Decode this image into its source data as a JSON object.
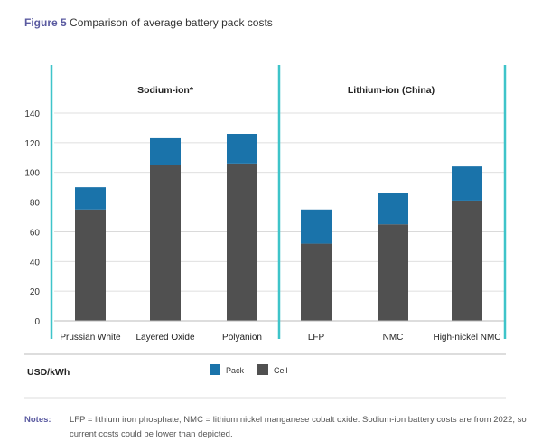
{
  "figure": {
    "label": "Figure 5",
    "title": "Comparison of average battery pack costs"
  },
  "chart_data": {
    "type": "bar",
    "stacked": true,
    "panels": [
      {
        "title": "Sodium-ion*",
        "categories": [
          "Prussian White",
          "Layered Oxide",
          "Polyanion"
        ]
      },
      {
        "title": "Lithium-ion (China)",
        "categories": [
          "LFP",
          "NMC",
          "High-nickel NMC"
        ]
      }
    ],
    "categories": [
      "Prussian White",
      "Layered Oxide",
      "Polyanion",
      "LFP",
      "NMC",
      "High-nickel NMC"
    ],
    "series": [
      {
        "name": "Cell",
        "color": "#505050",
        "values": [
          75,
          105,
          106,
          52,
          65,
          81
        ]
      },
      {
        "name": "Pack",
        "color": "#1a73aa",
        "values": [
          15,
          18,
          20,
          23,
          21,
          23
        ]
      }
    ],
    "totals": [
      90,
      123,
      126,
      75,
      86,
      104
    ],
    "ylim": [
      0,
      140
    ],
    "yticks": [
      0,
      20,
      40,
      60,
      80,
      100,
      120,
      140
    ],
    "ylabel": "USD/kWh",
    "grid": true,
    "legend_position": "bottom",
    "legend_order": [
      "Pack",
      "Cell"
    ],
    "panel_border_color": "#3ec4c9"
  },
  "notes": {
    "label": "Notes:",
    "text": "LFP = lithium iron phosphate; NMC = lithium nickel manganese cobalt oxide. Sodium-ion battery costs are from 2022, so current costs could be lower than depicted."
  }
}
